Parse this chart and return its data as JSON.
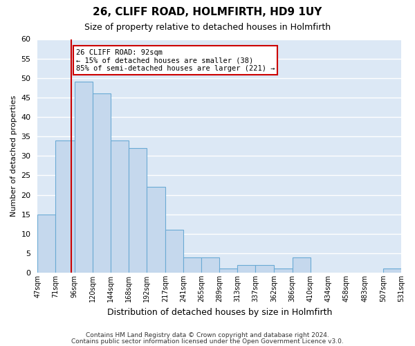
{
  "title": "26, CLIFF ROAD, HOLMFIRTH, HD9 1UY",
  "subtitle": "Size of property relative to detached houses in Holmfirth",
  "xlabel": "Distribution of detached houses by size in Holmfirth",
  "ylabel": "Number of detached properties",
  "bin_edges": [
    47,
    71,
    96,
    120,
    144,
    168,
    192,
    217,
    241,
    265,
    289,
    313,
    337,
    362,
    386,
    410,
    434,
    458,
    483,
    507,
    531
  ],
  "bin_labels": [
    "47sqm",
    "71sqm",
    "96sqm",
    "120sqm",
    "144sqm",
    "168sqm",
    "192sqm",
    "217sqm",
    "241sqm",
    "265sqm",
    "289sqm",
    "313sqm",
    "337sqm",
    "362sqm",
    "386sqm",
    "410sqm",
    "434sqm",
    "458sqm",
    "483sqm",
    "507sqm",
    "531sqm"
  ],
  "counts": [
    15,
    34,
    49,
    46,
    34,
    32,
    22,
    11,
    4,
    4,
    1,
    2,
    2,
    1,
    4,
    0,
    0,
    0,
    0,
    1
  ],
  "bar_color": "#c5d8ed",
  "bar_edge_color": "#6aaad4",
  "property_size": 92,
  "vline_color": "#cc0000",
  "annotation_text": "26 CLIFF ROAD: 92sqm\n← 15% of detached houses are smaller (38)\n85% of semi-detached houses are larger (221) →",
  "annotation_box_color": "white",
  "annotation_box_edge_color": "#cc0000",
  "ylim": [
    0,
    60
  ],
  "yticks": [
    0,
    5,
    10,
    15,
    20,
    25,
    30,
    35,
    40,
    45,
    50,
    55,
    60
  ],
  "plot_bg_color": "#dce8f5",
  "figure_bg_color": "#ffffff",
  "grid_color": "#ffffff",
  "footer_line1": "Contains HM Land Registry data © Crown copyright and database right 2024.",
  "footer_line2": "Contains public sector information licensed under the Open Government Licence v3.0."
}
